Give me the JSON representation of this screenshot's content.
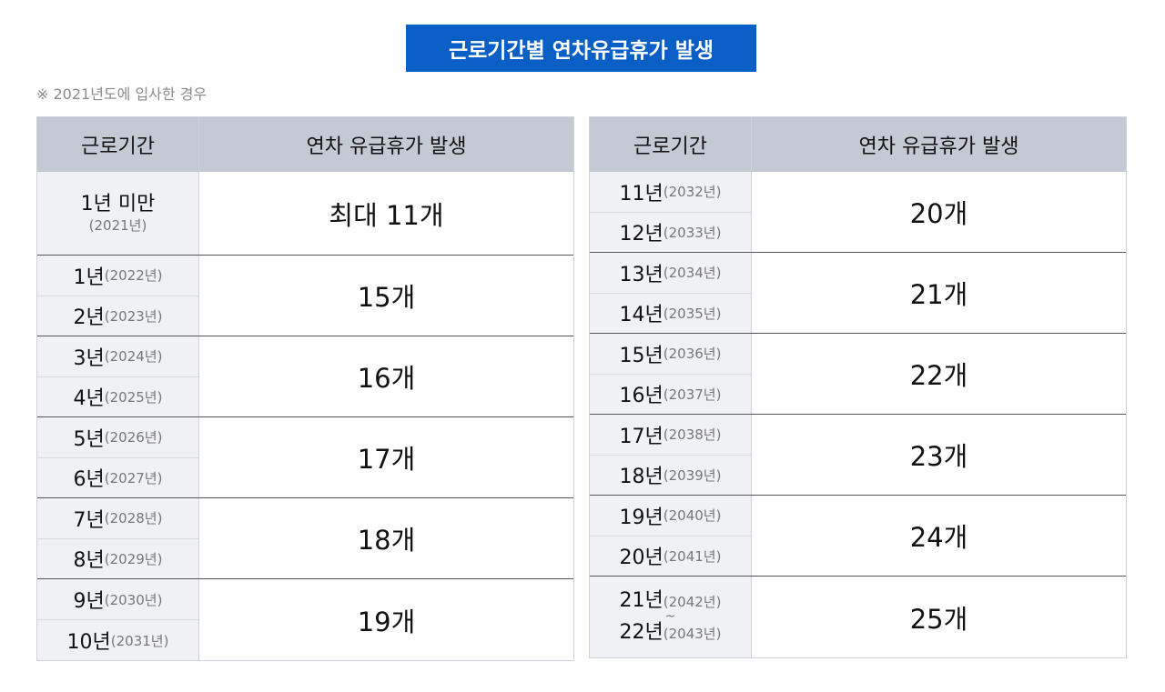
{
  "title": "근로기간별 연차유급휴가 발생",
  "note": "※ 2021년도에 입사한 경우",
  "headers": {
    "period": "근로기간",
    "leave": "연차 유급휴가 발생"
  },
  "left_groups": [
    {
      "stacked": true,
      "rows": [
        {
          "main": "1년 미만",
          "sub": "(2021년)"
        }
      ],
      "value": "최대 11개"
    },
    {
      "rows": [
        {
          "main": "1년",
          "sub": "(2022년)"
        },
        {
          "main": "2년",
          "sub": "(2023년)"
        }
      ],
      "value": "15개"
    },
    {
      "rows": [
        {
          "main": "3년",
          "sub": "(2024년)"
        },
        {
          "main": "4년",
          "sub": "(2025년)"
        }
      ],
      "value": "16개"
    },
    {
      "rows": [
        {
          "main": "5년",
          "sub": "(2026년)"
        },
        {
          "main": "6년",
          "sub": "(2027년)"
        }
      ],
      "value": "17개"
    },
    {
      "rows": [
        {
          "main": "7년",
          "sub": "(2028년)"
        },
        {
          "main": "8년",
          "sub": "(2029년)"
        }
      ],
      "value": "18개"
    },
    {
      "rows": [
        {
          "main": "9년",
          "sub": "(2030년)"
        },
        {
          "main": "10년",
          "sub": "(2031년)"
        }
      ],
      "value": "19개"
    }
  ],
  "right_groups": [
    {
      "rows": [
        {
          "main": "11년",
          "sub": "(2032년)"
        },
        {
          "main": "12년",
          "sub": "(2033년)"
        }
      ],
      "value": "20개"
    },
    {
      "rows": [
        {
          "main": "13년",
          "sub": "(2034년)"
        },
        {
          "main": "14년",
          "sub": "(2035년)"
        }
      ],
      "value": "21개"
    },
    {
      "rows": [
        {
          "main": "15년",
          "sub": "(2036년)"
        },
        {
          "main": "16년",
          "sub": "(2037년)"
        }
      ],
      "value": "22개"
    },
    {
      "rows": [
        {
          "main": "17년",
          "sub": "(2038년)"
        },
        {
          "main": "18년",
          "sub": "(2039년)"
        }
      ],
      "value": "23개"
    },
    {
      "rows": [
        {
          "main": "19년",
          "sub": "(2040년)"
        },
        {
          "main": "20년",
          "sub": "(2041년)"
        }
      ],
      "value": "24개"
    },
    {
      "range": true,
      "rows": [
        {
          "main": "21년",
          "sub": "(2042년)"
        },
        {
          "main": "22년",
          "sub": "(2043년)"
        }
      ],
      "separator": "~",
      "value": "25개"
    }
  ]
}
